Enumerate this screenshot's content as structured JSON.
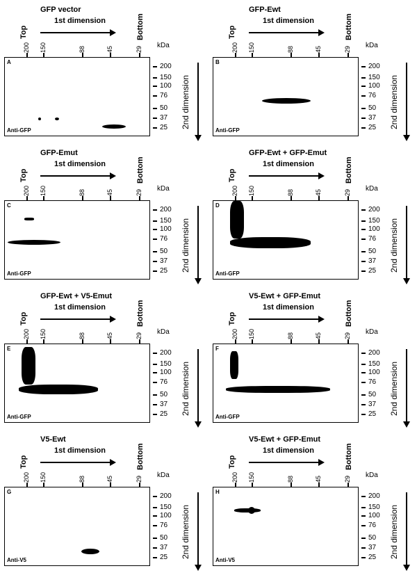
{
  "first_dim_tick_labels": [
    "200",
    "150",
    "88",
    "45",
    "29"
  ],
  "second_dim_labels": [
    "200",
    "150",
    "100",
    "76",
    "50",
    "37",
    "25"
  ],
  "kda": "kDa",
  "top": "Top",
  "bottom": "Bottom",
  "first_dimension": "1st dimension",
  "second_dimension": "2nd dimension",
  "panels": [
    {
      "letter": "A",
      "title": "GFP vector",
      "antibody": "Anti-GFP"
    },
    {
      "letter": "B",
      "title": "GFP-Ewt",
      "antibody": "Anti-GFP"
    },
    {
      "letter": "C",
      "title": "GFP-Emut",
      "antibody": "Anti-GFP"
    },
    {
      "letter": "D",
      "title": "GFP-Ewt + GFP-Emut",
      "antibody": "Anti-GFP"
    },
    {
      "letter": "E",
      "title": "GFP-Ewt + V5-Emut",
      "antibody": "Anti-GFP"
    },
    {
      "letter": "F",
      "title": "V5-Ewt + GFP-Emut",
      "antibody": "Anti-GFP"
    },
    {
      "letter": "G",
      "title": "V5-Ewt",
      "antibody": "Anti-V5"
    },
    {
      "letter": "H",
      "title": "V5-Ewt + GFP-Emut",
      "antibody": "Anti-V5"
    }
  ]
}
